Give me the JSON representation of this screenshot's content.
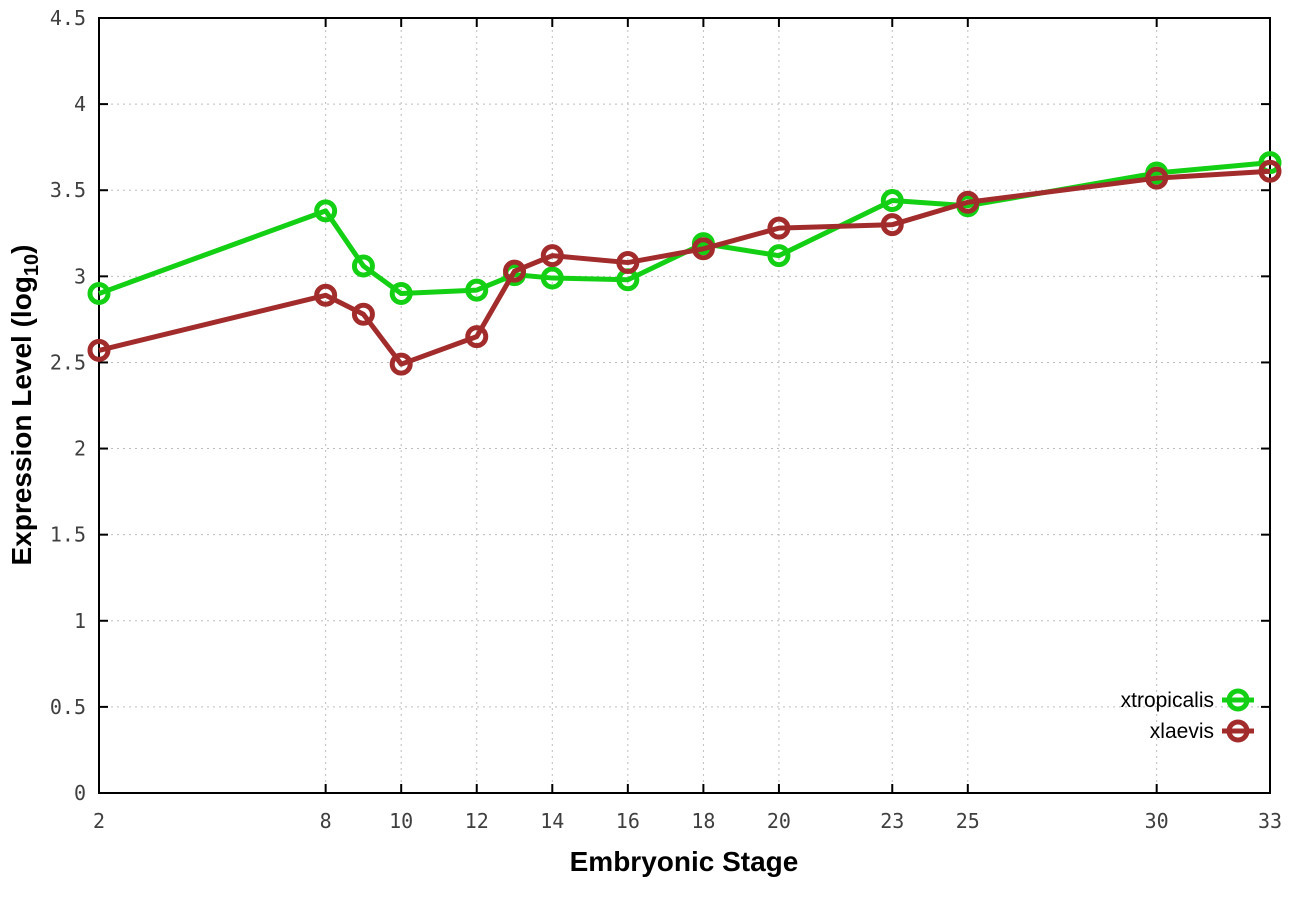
{
  "style": {
    "background": "#ffffff",
    "axis_color": "#000000",
    "grid_color": "#bdbdbd",
    "tick_label_color": "#3f3f3f",
    "title_color": "#000000"
  },
  "chart_data": {
    "type": "line",
    "title": "",
    "xlabel": "Embryonic Stage",
    "ylabel": "Expression Level (log10)",
    "ylabel_parts": {
      "main": "Expression Level (log",
      "sub": "10",
      "close": ")"
    },
    "x": [
      2,
      8,
      9,
      10,
      12,
      13,
      14,
      16,
      18,
      20,
      23,
      25,
      30,
      33
    ],
    "xticks": [
      2,
      8,
      10,
      12,
      14,
      16,
      18,
      20,
      23,
      25,
      30,
      33
    ],
    "xtick_labels": [
      "2",
      "8",
      "10",
      "12",
      "14",
      "16",
      "18",
      "20",
      "23",
      "25",
      "30",
      "33"
    ],
    "yticks": [
      0,
      0.5,
      1,
      1.5,
      2,
      2.5,
      3,
      3.5,
      4,
      4.5
    ],
    "ytick_labels": [
      "0",
      "0.5",
      "1",
      "1.5",
      "2",
      "2.5",
      "3",
      "3.5",
      "4",
      "4.5"
    ],
    "xlim": [
      2,
      33
    ],
    "ylim": [
      0,
      4.5
    ],
    "grid": true,
    "marker": "open-circle",
    "legend_position": "bottom-right",
    "series": [
      {
        "name": "xtropicalis",
        "color": "#14d014",
        "values": [
          2.9,
          3.38,
          3.06,
          2.9,
          2.92,
          3.01,
          2.99,
          2.98,
          3.19,
          3.12,
          3.44,
          3.41,
          3.6,
          3.66
        ]
      },
      {
        "name": "xlaevis",
        "color": "#a22c2c",
        "values": [
          2.57,
          2.89,
          2.78,
          2.49,
          2.65,
          3.03,
          3.12,
          3.08,
          3.16,
          3.28,
          3.3,
          3.43,
          3.57,
          3.61
        ]
      }
    ]
  }
}
